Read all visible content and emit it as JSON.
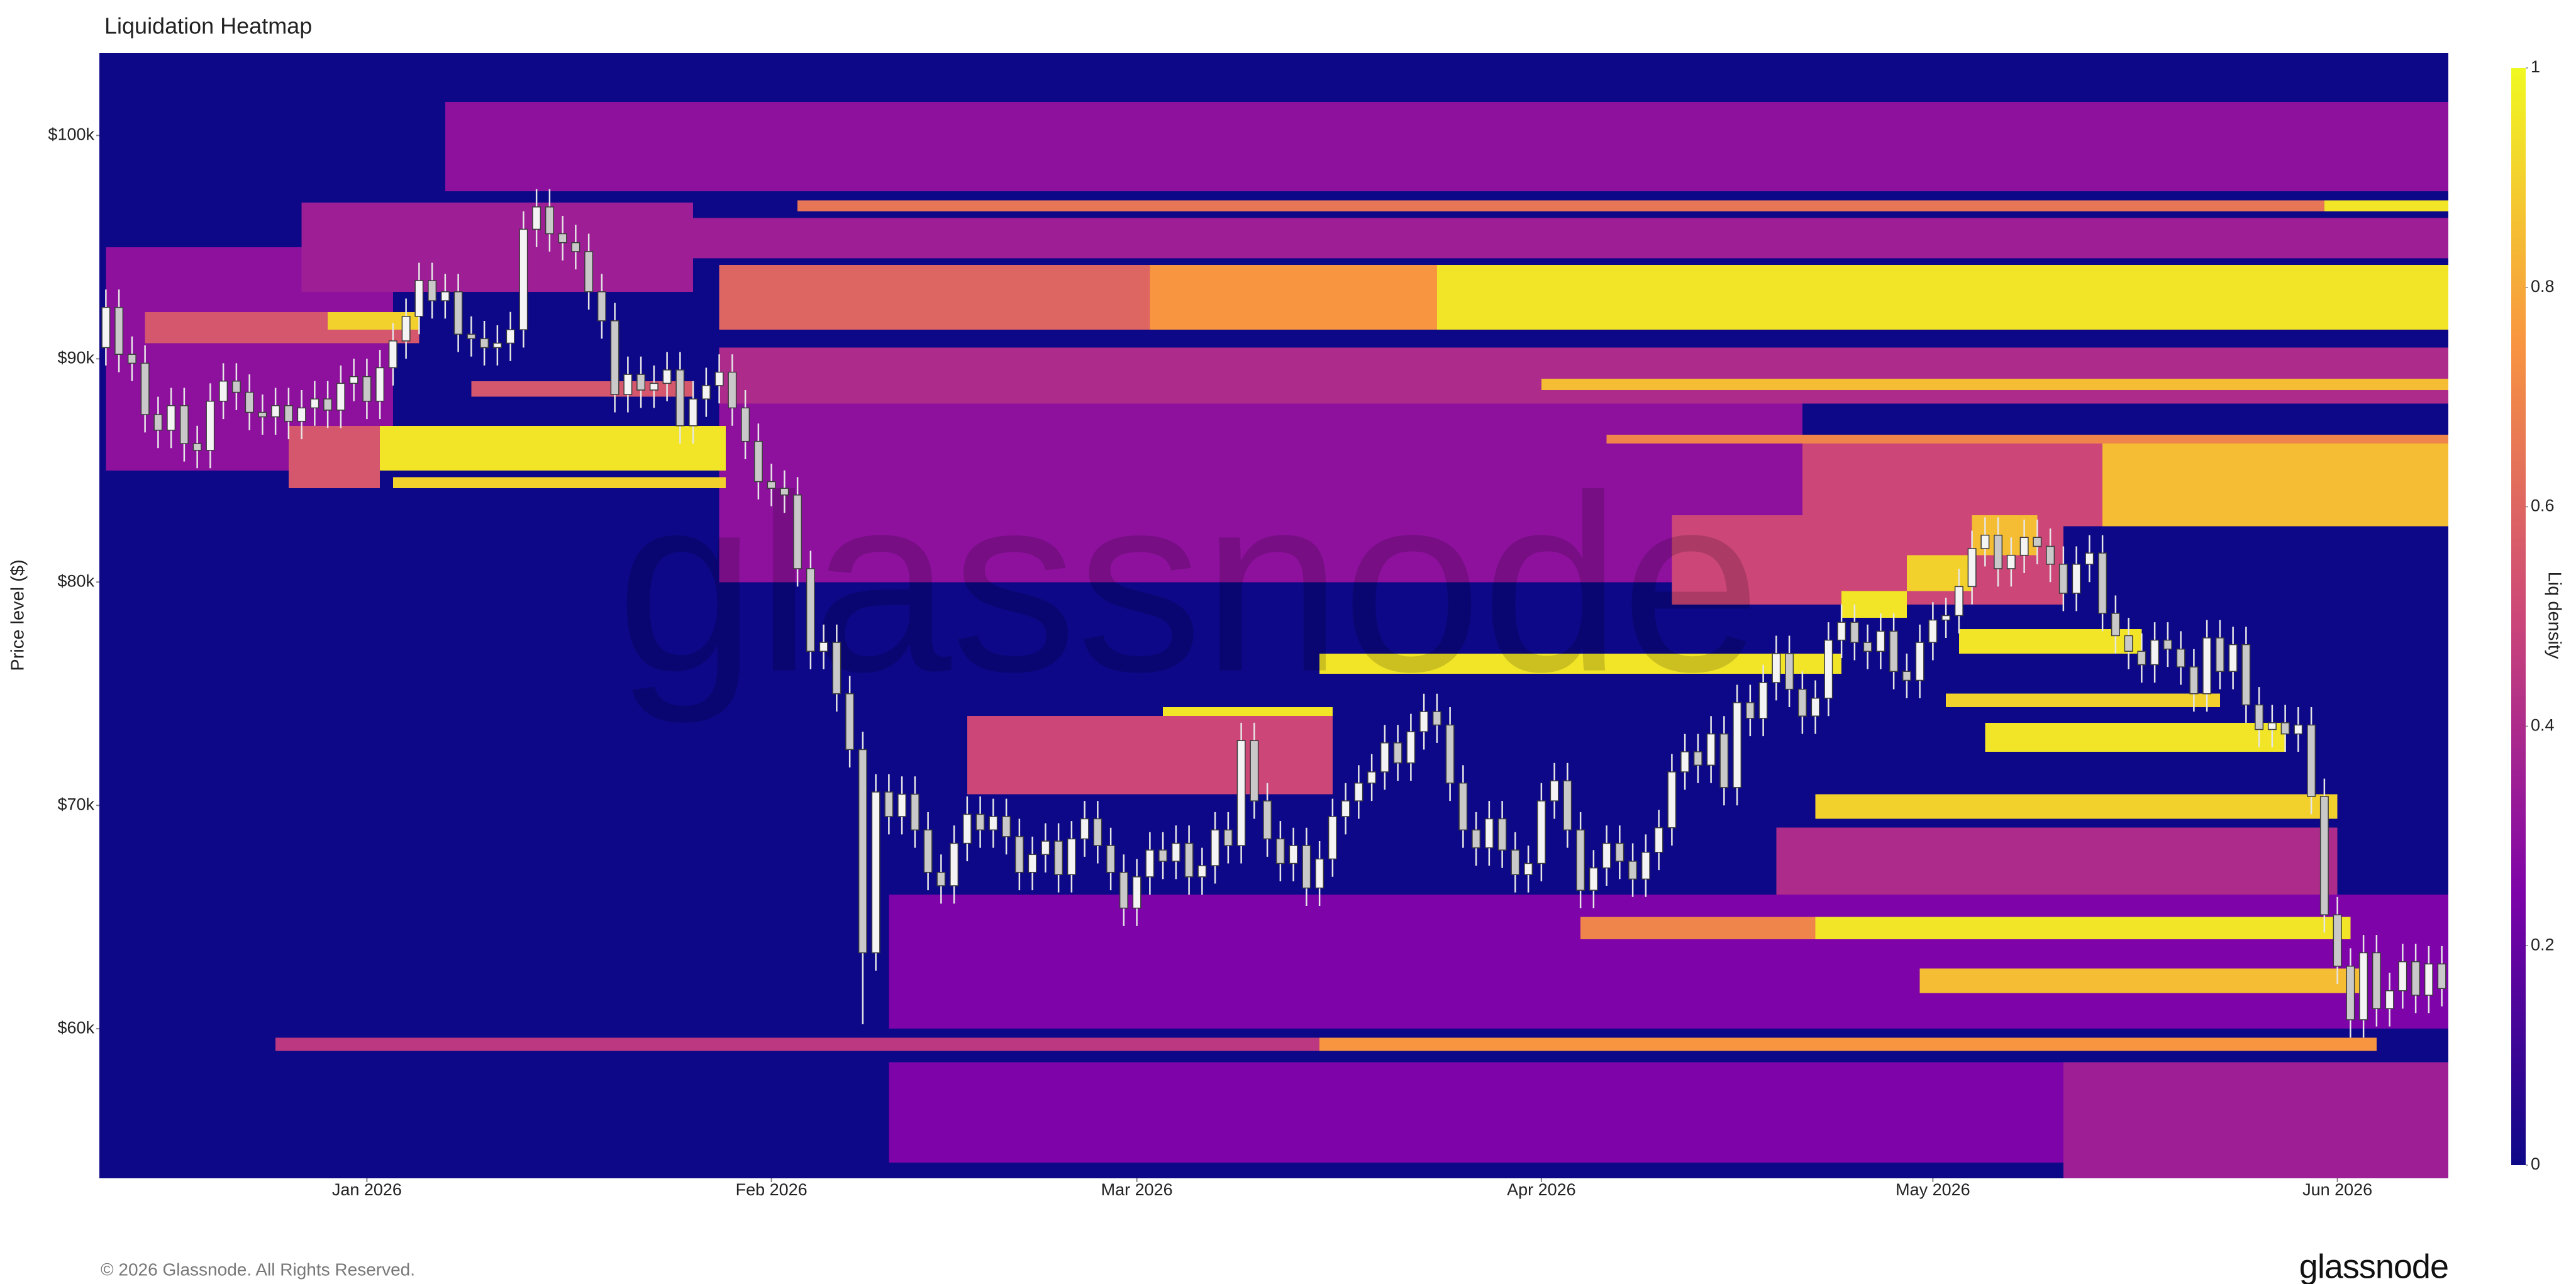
{
  "chart_data": {
    "type": "heatmap",
    "title": "Liquidation Heatmap",
    "y_label": "Price level ($)",
    "watermark": "glassnode",
    "footer": "© 2026 Glassnode. All Rights Reserved.",
    "logo": "glassnode",
    "xlim": [
      -0.5,
      179.5
    ],
    "xticks": [
      {
        "value": 20,
        "label": "Jan 2026"
      },
      {
        "value": 51,
        "label": "Feb 2026"
      },
      {
        "value": 79,
        "label": "Mar 2026"
      },
      {
        "value": 110,
        "label": "Apr 2026"
      },
      {
        "value": 140,
        "label": "May 2026"
      },
      {
        "value": 171,
        "label": "Jun 2026"
      }
    ],
    "ylim": [
      53.3,
      103.7
    ],
    "yticks": [
      {
        "value": 60,
        "label": "$60k"
      },
      {
        "value": 70,
        "label": "$70k"
      },
      {
        "value": 80,
        "label": "$80k"
      },
      {
        "value": 90,
        "label": "$90k"
      },
      {
        "value": 100,
        "label": "$100k"
      }
    ],
    "colorscale": [
      "#0d0887",
      "#7e03a8",
      "#cc4778",
      "#f89540",
      "#f0f921"
    ],
    "colorbar": {
      "label": "Liq density",
      "lim": [
        0,
        1
      ],
      "ticks": [
        0,
        0.2,
        0.4,
        0.6,
        0.8,
        1
      ]
    },
    "heatmap": [
      [
        0,
        22,
        85,
        95,
        0.3
      ],
      [
        15,
        45,
        93,
        97,
        0.35
      ],
      [
        26,
        179.5,
        97.5,
        101.5,
        0.3
      ],
      [
        40,
        179.5,
        94.5,
        96.3,
        0.35
      ],
      [
        47,
        179.5,
        88,
        90.5,
        0.4
      ],
      [
        47,
        130,
        80,
        88,
        0.3
      ],
      [
        60,
        179.5,
        54,
        58.5,
        0.25
      ],
      [
        150,
        179.5,
        53.3,
        58.5,
        0.35
      ],
      [
        60,
        179.5,
        60,
        66,
        0.25
      ],
      [
        128,
        171,
        66,
        69,
        0.4
      ],
      [
        66,
        94,
        70.5,
        74,
        0.5
      ],
      [
        120,
        150,
        79,
        83,
        0.5
      ],
      [
        130,
        153,
        82.5,
        86.2,
        0.5
      ],
      [
        3,
        24,
        90.7,
        92.1,
        0.55
      ],
      [
        17,
        24,
        91.3,
        92.1,
        0.9
      ],
      [
        14,
        21,
        84.2,
        87,
        0.55
      ],
      [
        21,
        47.5,
        85,
        87,
        0.95
      ],
      [
        22,
        47.5,
        84.2,
        84.7,
        0.9
      ],
      [
        28,
        45,
        88.3,
        89,
        0.55
      ],
      [
        47,
        80,
        91.3,
        94.2,
        0.6
      ],
      [
        80,
        102,
        91.3,
        94.2,
        0.75
      ],
      [
        102,
        179.5,
        91.3,
        94.2,
        0.95
      ],
      [
        53,
        170,
        96.6,
        97.1,
        0.65
      ],
      [
        170,
        179.5,
        96.6,
        97.1,
        0.95
      ],
      [
        110,
        179.5,
        88.6,
        89.1,
        0.85
      ],
      [
        115,
        179.5,
        86.2,
        86.6,
        0.7
      ],
      [
        153,
        179.5,
        82.5,
        86.2,
        0.85
      ],
      [
        93,
        133,
        75.9,
        76.8,
        0.95
      ],
      [
        133,
        138,
        78.4,
        79.6,
        0.95
      ],
      [
        138,
        143,
        79.6,
        81.2,
        0.9
      ],
      [
        143,
        148,
        81.2,
        83,
        0.85
      ],
      [
        81,
        94,
        74,
        74.4,
        0.95
      ],
      [
        142,
        156,
        76.8,
        77.9,
        0.95
      ],
      [
        141,
        162,
        74.4,
        75,
        0.9
      ],
      [
        144,
        167,
        72.4,
        73.7,
        0.95
      ],
      [
        131,
        171,
        69.4,
        70.5,
        0.9
      ],
      [
        113,
        131,
        64,
        65,
        0.7
      ],
      [
        131,
        172,
        64,
        65,
        0.95
      ],
      [
        139,
        173,
        61.6,
        62.7,
        0.85
      ],
      [
        13,
        93,
        59,
        59.6,
        0.45
      ],
      [
        93,
        174,
        59,
        59.6,
        0.75
      ]
    ],
    "candles": {
      "x": [
        0,
        1,
        2,
        3,
        4,
        5,
        6,
        7,
        8,
        9,
        10,
        11,
        12,
        13,
        14,
        15,
        16,
        17,
        18,
        19,
        20,
        21,
        22,
        23,
        24,
        25,
        26,
        27,
        28,
        29,
        30,
        31,
        32,
        33,
        34,
        35,
        36,
        37,
        38,
        39,
        40,
        41,
        42,
        43,
        44,
        45,
        46,
        47,
        48,
        49,
        50,
        51,
        52,
        53,
        54,
        55,
        56,
        57,
        58,
        59,
        60,
        61,
        62,
        63,
        64,
        65,
        66,
        67,
        68,
        69,
        70,
        71,
        72,
        73,
        74,
        75,
        76,
        77,
        78,
        79,
        80,
        81,
        82,
        83,
        84,
        85,
        86,
        87,
        88,
        89,
        90,
        91,
        92,
        93,
        94,
        95,
        96,
        97,
        98,
        99,
        100,
        101,
        102,
        103,
        104,
        105,
        106,
        107,
        108,
        109,
        110,
        111,
        112,
        113,
        114,
        115,
        116,
        117,
        118,
        119,
        120,
        121,
        122,
        123,
        124,
        125,
        126,
        127,
        128,
        129,
        130,
        131,
        132,
        133,
        134,
        135,
        136,
        137,
        138,
        139,
        140,
        141,
        142,
        143,
        144,
        145,
        146,
        147,
        148,
        149,
        150,
        151,
        152,
        153,
        154,
        155,
        156,
        157,
        158,
        159,
        160,
        161,
        162,
        163,
        164,
        165,
        166,
        167,
        168,
        169,
        170,
        171,
        172,
        173,
        174,
        175,
        176,
        177,
        178,
        179
      ],
      "open": [
        90.5,
        92.3,
        90.2,
        89.8,
        87.5,
        86.8,
        87.9,
        86.2,
        85.9,
        88.1,
        89.0,
        88.5,
        87.6,
        87.4,
        87.9,
        87.2,
        87.8,
        88.2,
        87.7,
        88.9,
        89.2,
        88.1,
        89.6,
        90.8,
        91.9,
        93.5,
        92.6,
        93.0,
        91.1,
        90.9,
        90.5,
        90.7,
        91.3,
        95.8,
        96.8,
        95.6,
        95.2,
        94.8,
        93.0,
        91.7,
        88.4,
        89.3,
        88.6,
        88.9,
        89.5,
        87.0,
        88.2,
        88.8,
        89.4,
        87.8,
        86.3,
        84.5,
        84.2,
        83.9,
        80.6,
        76.9,
        77.3,
        75.0,
        72.5,
        63.4,
        70.6,
        69.5,
        70.5,
        68.9,
        67.0,
        66.4,
        68.3,
        69.6,
        68.9,
        69.5,
        68.6,
        67.0,
        67.8,
        68.4,
        66.9,
        68.5,
        69.4,
        68.2,
        67.0,
        65.4,
        66.8,
        68.0,
        67.5,
        68.3,
        66.8,
        67.3,
        68.9,
        68.2,
        72.9,
        70.2,
        68.5,
        67.4,
        68.2,
        66.3,
        67.6,
        69.5,
        70.2,
        71.0,
        71.5,
        72.8,
        71.9,
        73.3,
        74.2,
        73.6,
        71.0,
        68.9,
        68.1,
        69.4,
        68.0,
        66.9,
        67.4,
        70.2,
        71.1,
        68.9,
        66.2,
        67.2,
        68.3,
        67.5,
        66.7,
        67.9,
        69.0,
        71.5,
        72.4,
        71.8,
        73.2,
        70.8,
        74.6,
        73.9,
        75.5,
        76.8,
        75.2,
        74.0,
        74.8,
        77.4,
        78.2,
        77.3,
        76.9,
        77.8,
        76.0,
        75.6,
        77.3,
        78.3,
        78.5,
        79.8,
        81.5,
        82.1,
        80.6,
        81.2,
        82.0,
        81.6,
        80.8,
        79.5,
        80.8,
        81.3,
        78.6,
        77.6,
        76.9,
        76.3,
        77.4,
        77.0,
        76.2,
        75.0,
        77.5,
        76.0,
        77.2,
        74.5,
        73.4,
        73.7,
        73.2,
        73.6,
        70.4,
        65.1,
        62.8,
        60.4,
        63.4,
        60.9,
        61.7,
        63.0,
        61.5,
        62.9
      ],
      "high": [
        93.1,
        93.1,
        91.0,
        90.6,
        88.3,
        88.7,
        88.7,
        87.0,
        88.9,
        89.8,
        89.8,
        89.3,
        88.4,
        88.7,
        88.7,
        88.6,
        89.0,
        89.0,
        89.7,
        90.0,
        90.0,
        90.4,
        91.6,
        92.7,
        94.3,
        94.3,
        93.8,
        93.8,
        91.9,
        91.7,
        91.5,
        92.1,
        96.6,
        97.6,
        97.6,
        96.4,
        96.0,
        95.6,
        93.8,
        92.5,
        90.1,
        90.1,
        89.7,
        90.3,
        90.3,
        89.0,
        89.6,
        90.2,
        90.2,
        88.6,
        87.1,
        85.3,
        85.0,
        84.7,
        81.4,
        78.1,
        78.1,
        75.8,
        73.3,
        71.4,
        71.4,
        71.3,
        71.3,
        69.7,
        67.8,
        69.1,
        70.4,
        70.4,
        70.3,
        70.3,
        69.4,
        68.6,
        69.2,
        69.2,
        69.3,
        70.2,
        70.2,
        69.0,
        67.8,
        67.6,
        68.8,
        68.8,
        69.1,
        69.1,
        68.1,
        69.7,
        69.7,
        73.7,
        73.7,
        71.0,
        69.3,
        69.0,
        69.0,
        68.4,
        70.3,
        71.0,
        71.8,
        72.3,
        73.6,
        73.6,
        74.1,
        75.0,
        75.0,
        74.4,
        71.8,
        69.7,
        70.2,
        70.2,
        68.8,
        68.2,
        71.0,
        71.9,
        71.9,
        69.7,
        68.0,
        69.1,
        69.1,
        68.3,
        68.7,
        69.8,
        72.3,
        73.2,
        73.2,
        74.0,
        74.0,
        75.4,
        75.4,
        76.3,
        77.6,
        77.6,
        76.0,
        75.6,
        78.2,
        79.0,
        79.0,
        78.1,
        78.6,
        78.6,
        76.8,
        78.1,
        79.1,
        79.3,
        80.6,
        82.3,
        82.9,
        82.9,
        82.0,
        82.8,
        82.8,
        82.4,
        81.6,
        81.6,
        82.1,
        82.1,
        79.4,
        78.4,
        77.7,
        78.2,
        78.2,
        77.8,
        77.0,
        78.3,
        78.3,
        78.0,
        78.0,
        75.3,
        74.5,
        74.5,
        74.4,
        74.4,
        71.2,
        65.9,
        63.6,
        64.2,
        64.2,
        62.5,
        63.8,
        63.8,
        63.7,
        63.7
      ],
      "low": [
        89.7,
        89.4,
        89.0,
        86.7,
        86.0,
        86.0,
        85.4,
        85.1,
        85.1,
        87.3,
        87.7,
        86.8,
        86.6,
        86.6,
        86.4,
        86.4,
        87.0,
        86.9,
        86.9,
        88.1,
        87.3,
        87.3,
        88.8,
        90.0,
        91.1,
        91.8,
        91.8,
        90.3,
        90.1,
        89.7,
        89.7,
        89.9,
        90.5,
        95.0,
        94.8,
        94.4,
        94.0,
        92.2,
        90.9,
        87.6,
        87.6,
        87.8,
        87.8,
        88.1,
        86.2,
        86.2,
        87.4,
        88.0,
        87.0,
        85.5,
        83.7,
        83.4,
        83.1,
        79.8,
        76.1,
        76.1,
        74.2,
        71.7,
        60.2,
        62.6,
        68.7,
        68.7,
        68.1,
        66.2,
        65.6,
        65.6,
        67.5,
        68.1,
        68.1,
        67.8,
        66.2,
        66.2,
        67.0,
        66.1,
        66.1,
        67.7,
        67.4,
        66.2,
        64.6,
        64.6,
        66.0,
        66.7,
        66.7,
        66.0,
        66.0,
        66.5,
        67.4,
        67.4,
        69.4,
        67.7,
        66.6,
        66.6,
        65.5,
        65.5,
        66.8,
        68.7,
        69.4,
        70.2,
        70.7,
        71.1,
        71.1,
        72.5,
        72.8,
        70.2,
        68.1,
        67.3,
        67.3,
        67.2,
        66.1,
        66.1,
        66.6,
        69.4,
        68.1,
        65.4,
        65.4,
        66.4,
        66.7,
        65.9,
        65.9,
        67.1,
        68.2,
        70.7,
        71.0,
        71.0,
        70.0,
        70.0,
        73.1,
        73.1,
        74.7,
        74.4,
        73.2,
        73.2,
        74.0,
        76.6,
        76.5,
        76.1,
        76.1,
        75.2,
        74.8,
        74.8,
        76.5,
        77.5,
        77.7,
        79.0,
        80.7,
        79.8,
        79.8,
        80.4,
        80.8,
        80.0,
        78.7,
        78.7,
        80.0,
        77.8,
        76.8,
        76.1,
        75.5,
        75.5,
        76.2,
        75.4,
        74.2,
        74.2,
        75.2,
        75.2,
        73.7,
        72.6,
        72.6,
        72.4,
        72.4,
        69.6,
        64.3,
        62.0,
        59.6,
        59.6,
        60.1,
        60.1,
        60.9,
        60.7,
        60.7,
        61.0
      ],
      "close": [
        92.3,
        90.2,
        89.8,
        87.5,
        86.8,
        87.9,
        86.2,
        85.9,
        88.1,
        89.0,
        88.5,
        87.6,
        87.4,
        87.9,
        87.2,
        87.8,
        88.2,
        87.7,
        88.9,
        89.2,
        88.1,
        89.6,
        90.8,
        91.9,
        93.5,
        92.6,
        93.0,
        91.1,
        90.9,
        90.5,
        90.7,
        91.3,
        95.8,
        96.8,
        95.6,
        95.2,
        94.8,
        93.0,
        91.7,
        88.4,
        89.3,
        88.6,
        88.9,
        89.5,
        87.0,
        88.2,
        88.8,
        89.4,
        87.8,
        86.3,
        84.5,
        84.2,
        83.9,
        80.6,
        76.9,
        77.3,
        75.0,
        72.5,
        63.4,
        70.6,
        69.5,
        70.5,
        68.9,
        67.0,
        66.4,
        68.3,
        69.6,
        68.9,
        69.5,
        68.6,
        67.0,
        67.8,
        68.4,
        66.9,
        68.5,
        69.4,
        68.2,
        67.0,
        65.4,
        66.8,
        68.0,
        67.5,
        68.3,
        66.8,
        67.3,
        68.9,
        68.2,
        72.9,
        70.2,
        68.5,
        67.4,
        68.2,
        66.3,
        67.6,
        69.5,
        70.2,
        71.0,
        71.5,
        72.8,
        71.9,
        73.3,
        74.2,
        73.6,
        71.0,
        68.9,
        68.1,
        69.4,
        68.0,
        66.9,
        67.4,
        70.2,
        71.1,
        68.9,
        66.2,
        67.2,
        68.3,
        67.5,
        66.7,
        67.9,
        69.0,
        71.5,
        72.4,
        71.8,
        73.2,
        70.8,
        74.6,
        73.9,
        75.5,
        76.8,
        75.2,
        74.0,
        74.8,
        77.4,
        78.2,
        77.3,
        76.9,
        77.8,
        76.0,
        75.6,
        77.3,
        78.3,
        78.5,
        79.8,
        81.5,
        82.1,
        80.6,
        81.2,
        82.0,
        81.6,
        80.8,
        79.5,
        80.8,
        81.3,
        78.6,
        77.6,
        76.9,
        76.3,
        77.4,
        77.0,
        76.2,
        75.0,
        77.5,
        76.0,
        77.2,
        74.5,
        73.4,
        73.7,
        73.2,
        73.6,
        70.4,
        65.1,
        62.8,
        60.4,
        63.4,
        60.9,
        61.7,
        63.0,
        61.5,
        62.9,
        61.8
      ]
    }
  }
}
